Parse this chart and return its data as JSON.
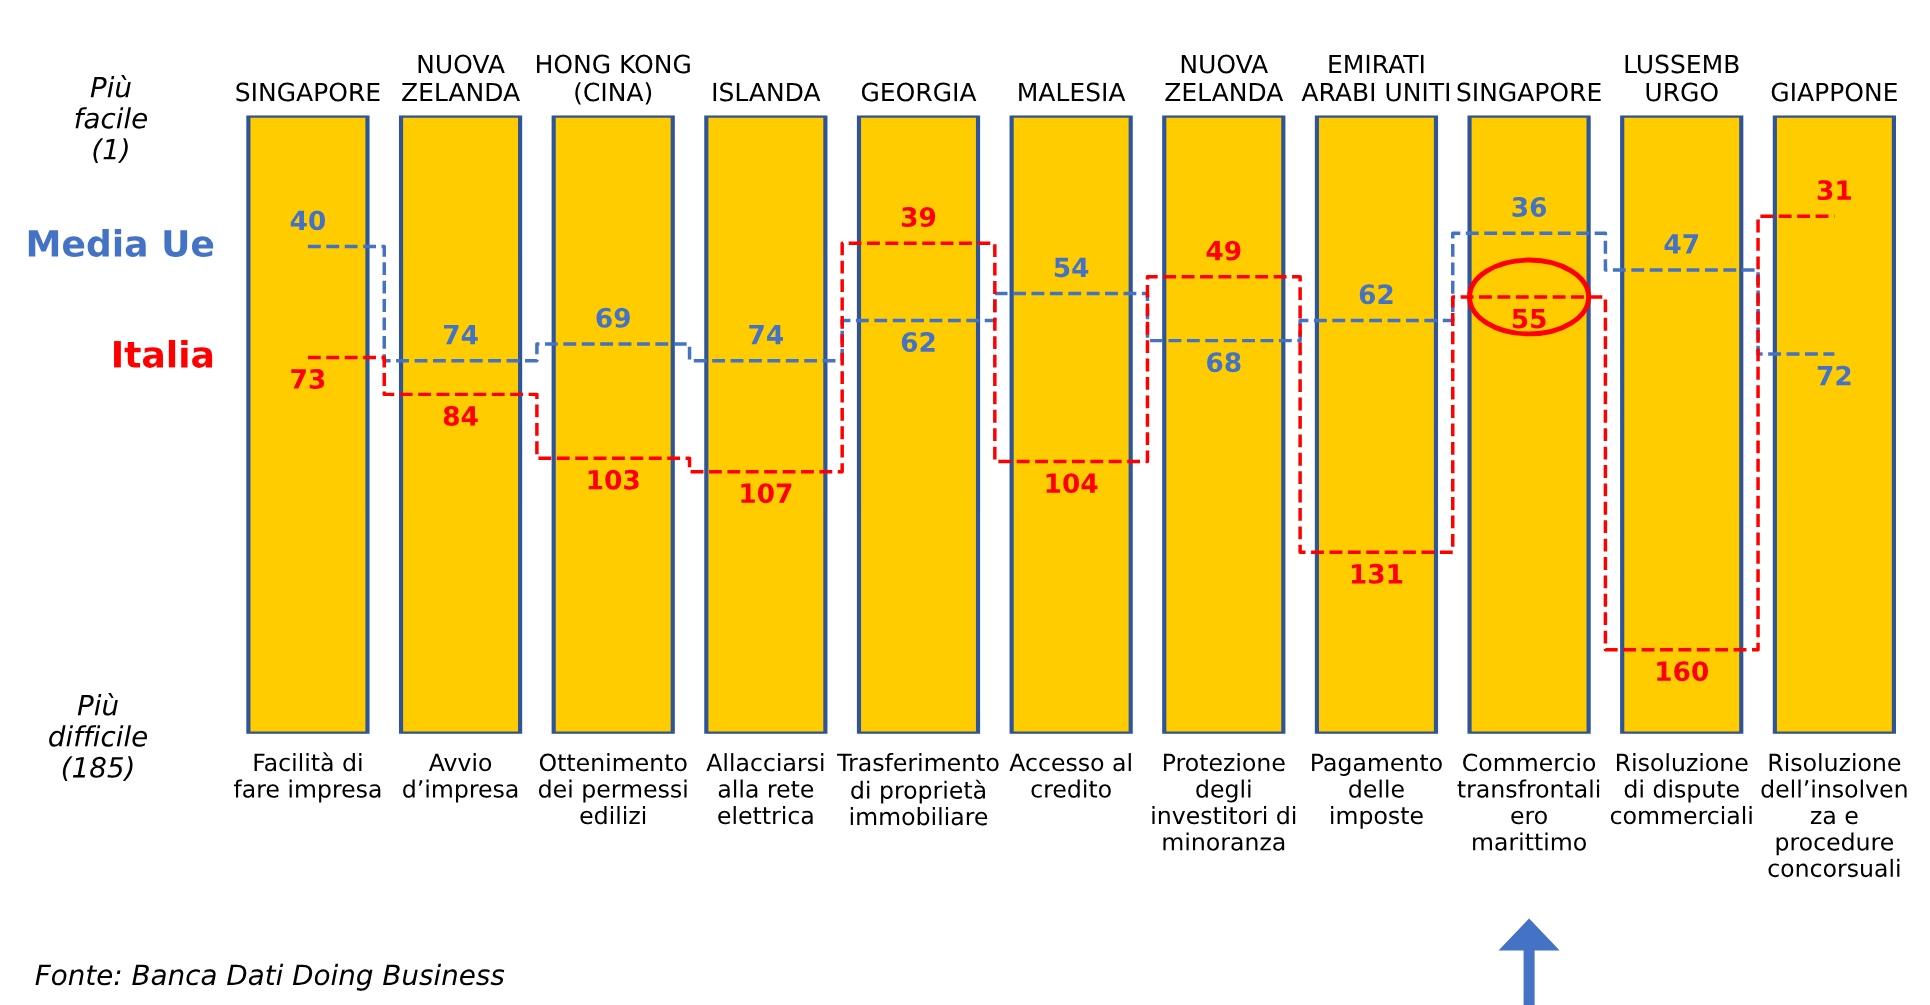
{
  "chart_data": {
    "type": "step",
    "categories": [
      "Facilità di\nfare impresa",
      "Avvio\nd’impresa",
      "Ottenimento\ndei permessi\nedilizi",
      "Allacciarsi\nalla rete\nelettrica",
      "Trasferimento\ndi proprietà\nimmobiliare",
      "Accesso al\ncredito",
      "Protezione\ndegli\ninvestitori di\nminoranza",
      "Pagamento\ndelle\nimposte",
      "Commercio\ntransfrontali\nero\nmarittimo",
      "Risoluzione\ndi dispute\ncommerciali",
      "Risoluzione\ndell’insolven\nza e\nprocedure\nconcorsuali"
    ],
    "series": [
      {
        "type": "bar",
        "color": "#ffcc00",
        "base": [
          1,
          1,
          1,
          1,
          1,
          1,
          1,
          1,
          1,
          1,
          1
        ],
        "values": [
          184,
          184,
          184,
          184,
          184,
          184,
          184,
          184,
          184,
          184,
          184
        ],
        "value_labels": [
          null,
          null,
          null,
          null,
          null,
          null,
          null,
          null,
          null,
          null,
          null
        ]
      },
      {
        "name": "Media Ue",
        "color": "#4472c4",
        "values": [
          40,
          74,
          69,
          74,
          62,
          54,
          68,
          62,
          36,
          47,
          72
        ]
      },
      {
        "name": "Italia",
        "color": "#ff0000",
        "values": [
          73,
          84,
          103,
          107,
          39,
          104,
          49,
          131,
          55,
          160,
          31
        ]
      }
    ],
    "ylim": [
      185,
      1
    ],
    "yticks": [
      {
        "value": 1,
        "label": "Più\nfacile\n(1)"
      },
      {
        "value": 185,
        "label": "Più\ndifficile\n(185)"
      }
    ],
    "line_style": "dashed",
    "data_labels": true,
    "legend": "left",
    "grid": false,
    "annotations": [
      "SINGAPORE",
      "NUOVA\nZELANDA",
      "HONG KONG\n(CINA)",
      "ISLANDA",
      "GEORGIA",
      "MALESIA",
      "NUOVA\nZELANDA",
      "EMIRATI\nARABI UNITI",
      "SINGAPORE",
      "LUSSEMB\nURGO",
      "GIAPPONE",
      "Fonte: Banca Dati Doing Business"
    ]
  }
}
